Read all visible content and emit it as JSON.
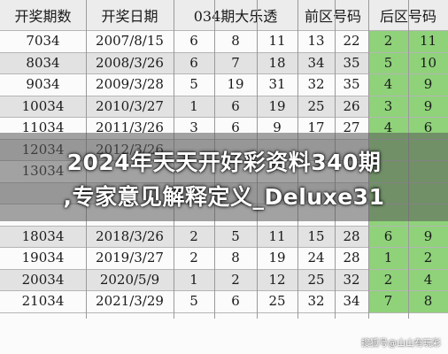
{
  "table": {
    "headers": [
      "开奖期数",
      "开奖日期",
      "034期大乐透",
      "前区号码",
      "后区号码"
    ],
    "rows": [
      [
        "7034",
        "2007/8/15",
        "6",
        "8",
        "11",
        "13",
        "22",
        "2",
        "11"
      ],
      [
        "8034",
        "2008/3/26",
        "6",
        "7",
        "18",
        "34",
        "35",
        "5",
        "10"
      ],
      [
        "9034",
        "2009/3/28",
        "5",
        "19",
        "31",
        "32",
        "35",
        "4",
        "9"
      ],
      [
        "10034",
        "2010/3/27",
        "1",
        "6",
        "19",
        "25",
        "26",
        "3",
        "9"
      ],
      [
        "11034",
        "2011/3/26",
        "3",
        "6",
        "9",
        "17",
        "27",
        "4",
        "6"
      ],
      [
        "12034",
        "2012/3/26",
        "",
        "",
        "",
        "",
        "",
        "",
        ""
      ],
      [
        "13034",
        "",
        "",
        "",
        "",
        "",
        "",
        "",
        ""
      ],
      [
        "",
        "",
        "",
        "",
        "",
        "",
        "",
        "",
        ""
      ],
      [
        "",
        "",
        "",
        "",
        "",
        "",
        "",
        "",
        ""
      ],
      [
        "18034",
        "2018/3/26",
        "2",
        "5",
        "11",
        "15",
        "28",
        "6",
        "9"
      ],
      [
        "19034",
        "2019/3/27",
        "2",
        "8",
        "19",
        "24",
        "28",
        "1",
        "2"
      ],
      [
        "20034",
        "2020/5/9",
        "1",
        "2",
        "12",
        "25",
        "32",
        "2",
        "4"
      ],
      [
        "21034",
        "2021/3/29",
        "5",
        "6",
        "25",
        "32",
        "34",
        "7",
        "8"
      ]
    ]
  },
  "headline": {
    "line1": "2024年天天开好彩资料340期",
    "line2": ",专家意见解释定义_Deluxe31"
  },
  "watermark": "搜狐号@山山有玩彩"
}
